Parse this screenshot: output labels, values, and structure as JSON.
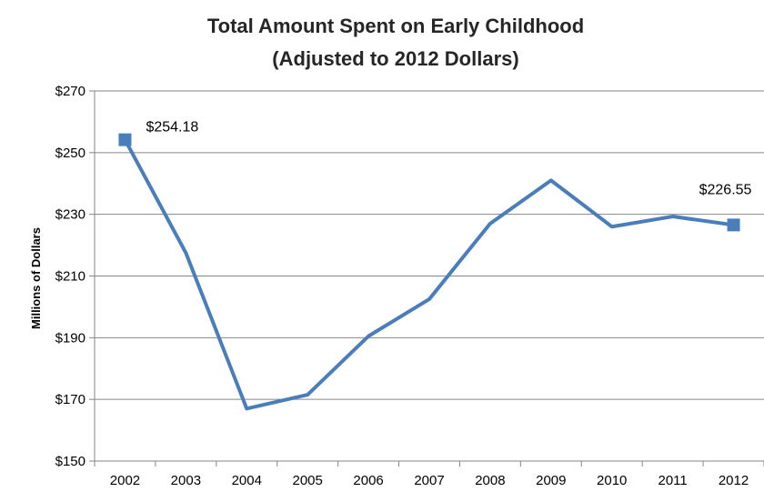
{
  "chart_data": {
    "type": "line",
    "title": "Total Amount Spent on Early Childhood",
    "subtitle": "(Adjusted to 2012 Dollars)",
    "xlabel": "",
    "ylabel": "Millions of Dollars",
    "categories": [
      "2002",
      "2003",
      "2004",
      "2005",
      "2006",
      "2007",
      "2008",
      "2009",
      "2010",
      "2011",
      "2012"
    ],
    "series": [
      {
        "values": [
          254.18,
          217.5,
          167,
          171.5,
          190.5,
          202.5,
          227,
          241,
          226,
          229.3,
          226.55
        ]
      }
    ],
    "ylim": [
      150,
      270
    ],
    "ytick_values": [
      150,
      170,
      190,
      210,
      230,
      250,
      270
    ],
    "ytick_labels": [
      "$150",
      "$170",
      "$190",
      "$210",
      "$230",
      "$250",
      "$270"
    ],
    "data_labels": [
      {
        "index": 0,
        "text": "$254.18"
      },
      {
        "index": 10,
        "text": "$226.55"
      }
    ],
    "markers": [
      0,
      10
    ],
    "grid": true,
    "legend": "none",
    "colors": {
      "line": "#4a7ebb",
      "grid": "#868686",
      "axis": "#868686"
    }
  }
}
